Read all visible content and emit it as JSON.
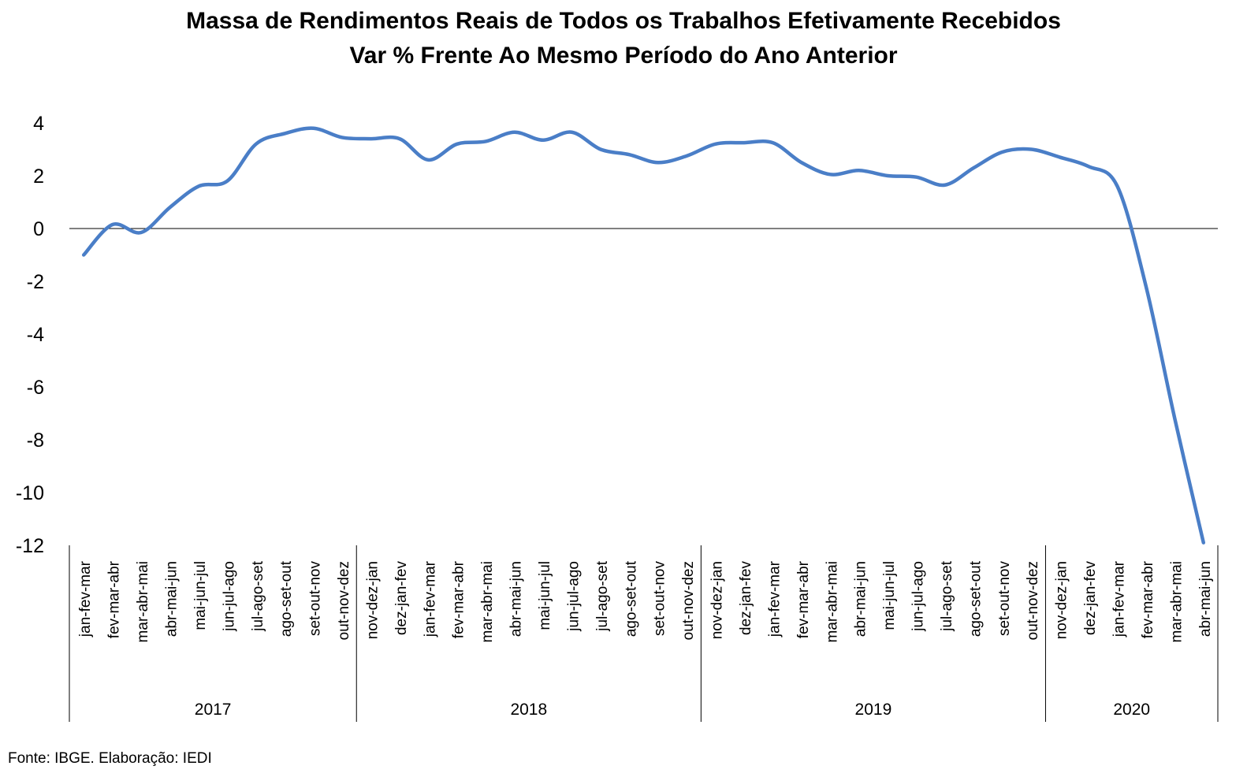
{
  "chart_data": {
    "type": "line",
    "title": "Massa de Rendimentos Reais de Todos os Trabalhos Efetivamente Recebidos",
    "subtitle": "Var % Frente Ao Mesmo Período do Ano Anterior",
    "xlabel": "",
    "ylabel": "",
    "ylim": [
      -12,
      4
    ],
    "yticks": [
      4,
      2,
      0,
      -2,
      -4,
      -6,
      -8,
      -10,
      -12
    ],
    "grid": false,
    "legend": "none",
    "line_color": "#4A7EC7",
    "categories": [
      "jan-fev-mar",
      "fev-mar-abr",
      "mar-abr-mai",
      "abr-mai-jun",
      "mai-jun-jul",
      "jun-jul-ago",
      "jul-ago-set",
      "ago-set-out",
      "set-out-nov",
      "out-nov-dez",
      "nov-dez-jan",
      "dez-jan-fev",
      "jan-fev-mar",
      "fev-mar-abr",
      "mar-abr-mai",
      "abr-mai-jun",
      "mai-jun-jul",
      "jun-jul-ago",
      "jul-ago-set",
      "ago-set-out",
      "set-out-nov",
      "out-nov-dez",
      "nov-dez-jan",
      "dez-jan-fev",
      "jan-fev-mar",
      "fev-mar-abr",
      "mar-abr-mai",
      "abr-mai-jun",
      "mai-jun-jul",
      "jun-jul-ago",
      "jul-ago-set",
      "ago-set-out",
      "set-out-nov",
      "out-nov-dez",
      "nov-dez-jan",
      "dez-jan-fev",
      "jan-fev-mar",
      "fev-mar-abr",
      "mar-abr-mai",
      "abr-mai-jun"
    ],
    "groups": [
      {
        "label": "2017",
        "count": 10
      },
      {
        "label": "2018",
        "count": 12
      },
      {
        "label": "2019",
        "count": 12
      },
      {
        "label": "2020",
        "count": 6
      }
    ],
    "series": [
      {
        "values": [
          -1.0,
          0.15,
          -0.15,
          0.8,
          1.6,
          1.8,
          3.2,
          3.6,
          3.8,
          3.45,
          3.4,
          3.4,
          2.6,
          3.2,
          3.3,
          3.65,
          3.35,
          3.65,
          3.0,
          2.8,
          2.5,
          2.75,
          3.2,
          3.25,
          3.25,
          2.5,
          2.05,
          2.2,
          2.0,
          1.95,
          1.65,
          2.3,
          2.9,
          3.0,
          2.7,
          2.35,
          1.6,
          -2.2,
          -7.2,
          -11.9
        ]
      }
    ]
  },
  "source": "Fonte: IBGE. Elaboração: IEDI"
}
